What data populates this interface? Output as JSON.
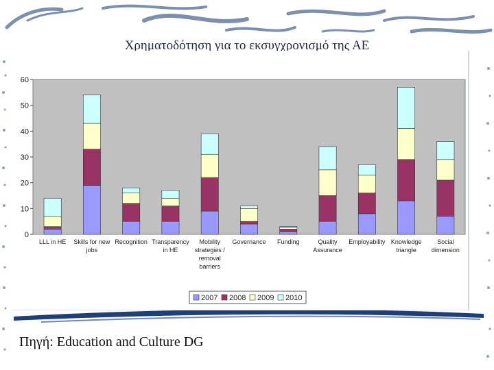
{
  "slide": {
    "title": "Χρηματοδότηση για το εκσυγχρονισμό της ΑΕ",
    "source": "Πηγή: Education and Culture DG"
  },
  "chart_data": {
    "type": "bar",
    "stacked": true,
    "categories": [
      [
        "LLL in HE"
      ],
      [
        "Skills for new",
        "jobs"
      ],
      [
        "Recognition"
      ],
      [
        "Transparency",
        "in HE"
      ],
      [
        "Mobility",
        "strategies /",
        "removal",
        "barriers"
      ],
      [
        "Governance"
      ],
      [
        "Funding"
      ],
      [
        "Quality",
        "Assurance"
      ],
      [
        "Employability"
      ],
      [
        "Knowledge",
        "triangle"
      ],
      [
        "Social",
        "dimension"
      ]
    ],
    "series": [
      {
        "name": "2007",
        "color": "#9999ff",
        "values": [
          2,
          19,
          5,
          5,
          9,
          4,
          1,
          5,
          8,
          13,
          7
        ]
      },
      {
        "name": "2008",
        "color": "#993366",
        "values": [
          1,
          14,
          7,
          6,
          13,
          1,
          1,
          10,
          8,
          16,
          14
        ]
      },
      {
        "name": "2009",
        "color": "#ffffcc",
        "values": [
          4,
          10,
          4,
          3,
          9,
          5,
          0.5,
          10,
          7,
          12,
          8
        ]
      },
      {
        "name": "2010",
        "color": "#ccffff",
        "values": [
          7,
          11,
          2,
          3,
          8,
          1,
          0.5,
          9,
          4,
          16,
          7
        ]
      }
    ],
    "yticks": [
      0,
      10,
      20,
      30,
      40,
      50,
      60
    ],
    "ylim": [
      0,
      60
    ],
    "legend_position": "bottom",
    "plot_background": "#c0c0c0",
    "grid": false
  }
}
